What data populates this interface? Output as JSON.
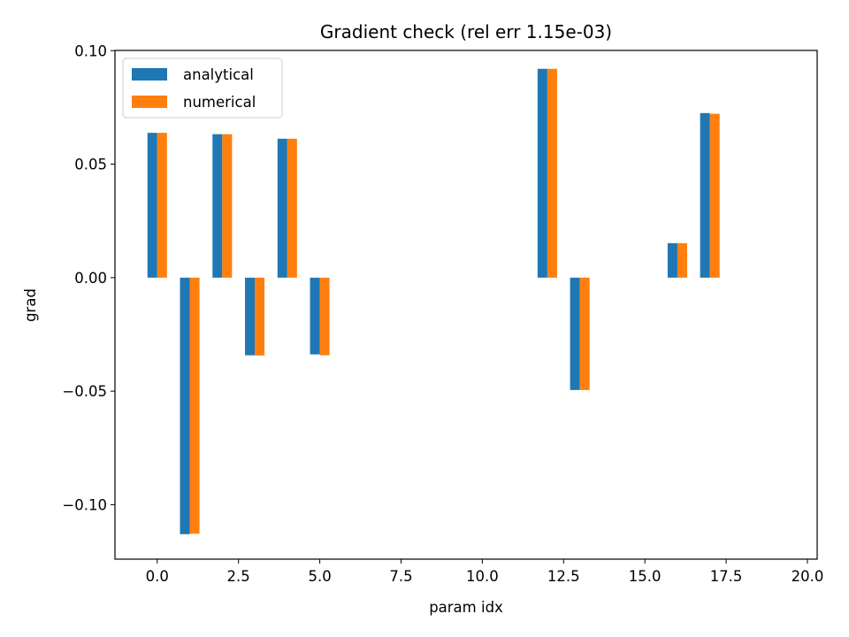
{
  "chart_data": {
    "type": "bar",
    "title": "Gradient check (rel err 1.15e-03)",
    "xlabel": "param idx",
    "ylabel": "grad",
    "xlim": [
      -1.3,
      20.3
    ],
    "ylim": [
      -0.124,
      0.1001
    ],
    "xticks": [
      0.0,
      2.5,
      5.0,
      7.5,
      10.0,
      12.5,
      15.0,
      17.5,
      20.0
    ],
    "xtick_labels": [
      "0.0",
      "2.5",
      "5.0",
      "7.5",
      "10.0",
      "12.5",
      "15.0",
      "17.5",
      "20.0"
    ],
    "yticks": [
      0.1,
      0.05,
      0.0,
      -0.05,
      -0.1
    ],
    "ytick_labels": [
      "0.10",
      "0.05",
      "0.00",
      "−0.05",
      "−0.10"
    ],
    "grid": false,
    "legend_position": "upper-left",
    "bar_width": 0.3,
    "series": [
      {
        "name": "analytical",
        "color": "#1f77b4",
        "offset": -0.15,
        "x": [
          0,
          1,
          2,
          3,
          4,
          5,
          12,
          13,
          16,
          17
        ],
        "values": [
          0.0638,
          -0.113,
          0.0632,
          -0.0342,
          0.0612,
          -0.0338,
          0.092,
          -0.0495,
          0.0152,
          0.0725
        ]
      },
      {
        "name": "numerical",
        "color": "#ff7f0e",
        "offset": 0.15,
        "x": [
          0,
          1,
          2,
          3,
          4,
          5,
          12,
          13,
          16,
          17
        ],
        "values": [
          0.0638,
          -0.1128,
          0.0632,
          -0.0343,
          0.0612,
          -0.0342,
          0.092,
          -0.0495,
          0.0152,
          0.0722
        ]
      }
    ]
  }
}
